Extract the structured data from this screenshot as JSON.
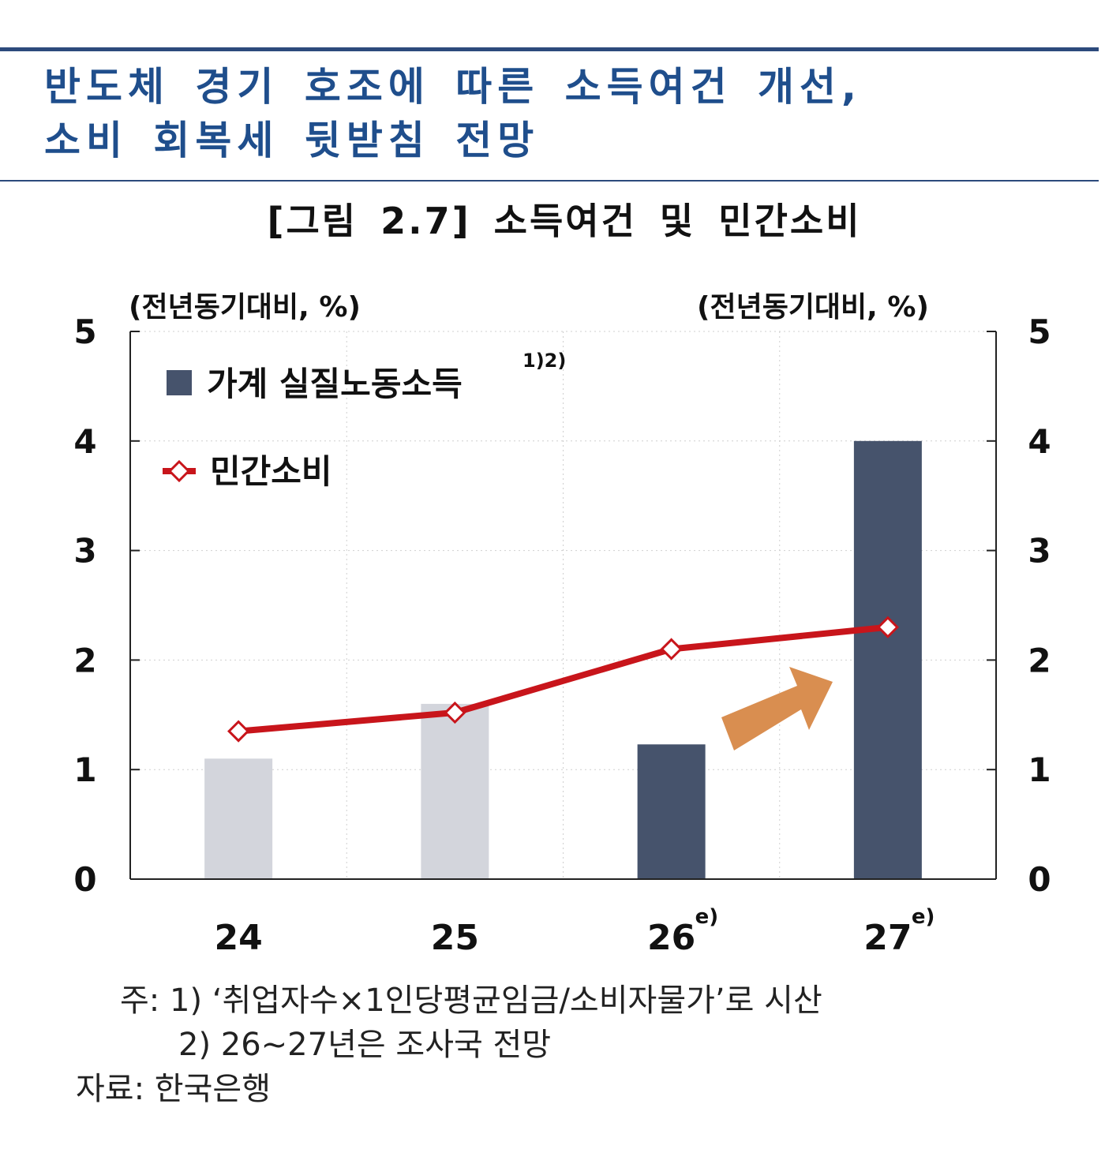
{
  "headline": {
    "line1": "반도체 경기 호조에 따른 소득여건 개선,",
    "line2": "소비 회복세 뒷받침 전망"
  },
  "figure_title": "[그림 2.7] 소득여건 및 민간소비",
  "colors": {
    "headline": "#1f4e8c",
    "bar_actual": "#d3d5dc",
    "bar_forecast": "#46536c",
    "line": "#c8151b",
    "arrow": "#d98e50"
  },
  "chart_data": {
    "type": "bar",
    "categories": [
      "24",
      "25",
      "26",
      "27"
    ],
    "category_superscripts": [
      "",
      "",
      "e)",
      "e)"
    ],
    "series": [
      {
        "name": "가계 실질노동소득",
        "name_superscript": "1)2)",
        "type": "bar",
        "values": [
          1.1,
          1.6,
          1.23,
          4.0
        ],
        "shading": [
          "actual",
          "actual",
          "forecast",
          "forecast"
        ]
      },
      {
        "name": "민간소비",
        "type": "line",
        "marker": "diamond",
        "values": [
          1.35,
          1.52,
          2.1,
          2.3
        ]
      }
    ],
    "y_left": {
      "label": "(전년동기대비, %)",
      "ylim": [
        0,
        5
      ],
      "ticks": [
        "0",
        "1",
        "2",
        "3",
        "4",
        "5"
      ]
    },
    "y_right": {
      "label": "(전년동기대비, %)",
      "ylim": [
        0,
        5
      ],
      "ticks": [
        "0",
        "1",
        "2",
        "3",
        "4",
        "5"
      ]
    },
    "grid": "dotted",
    "legend": "top-left",
    "annotation": "upward arrow between 26 and 27"
  },
  "notes": {
    "note1": "주: 1) ‘취업자수×1인당평균임금/소비자물가’로 시산",
    "note2": "2) 26~27년은 조사국 전망",
    "source": "자료: 한국은행"
  }
}
